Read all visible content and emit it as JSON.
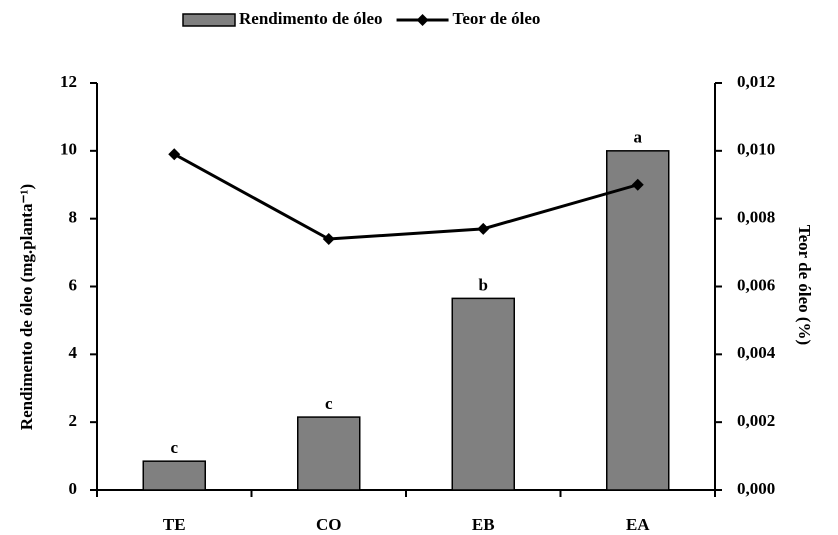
{
  "chart_data": {
    "type": "bar_line",
    "categories": [
      "TE",
      "CO",
      "EB",
      "EA"
    ],
    "series": [
      {
        "name": "Rendimento de óleo",
        "type": "bar",
        "color": "#808080",
        "values": [
          0.85,
          2.15,
          5.65,
          10.0
        ]
      },
      {
        "name": "Teor de óleo",
        "type": "line",
        "axis": "y2",
        "color": "#000000",
        "values": [
          0.0099,
          0.0074,
          0.0077,
          0.009
        ]
      }
    ],
    "bar_labels": [
      "c",
      "c",
      "b",
      "a"
    ],
    "ylabel": "Rendimento de óleo (mg.planta⁻¹)",
    "y2label": "Teor de óleo (%)",
    "ylim": [
      0,
      12
    ],
    "yticks": [
      0,
      2,
      4,
      6,
      8,
      10,
      12
    ],
    "y2lim": [
      0,
      0.012
    ],
    "y2ticks": [
      {
        "value": 0,
        "label": "0,000"
      },
      {
        "value": 0.002,
        "label": "0,002"
      },
      {
        "value": 0.004,
        "label": "0,004"
      },
      {
        "value": 0.006,
        "label": "0,006"
      },
      {
        "value": 0.008,
        "label": "0,008"
      },
      {
        "value": 0.01,
        "label": "0,010"
      },
      {
        "value": 0.012,
        "label": "0,012"
      }
    ],
    "legend": "top"
  }
}
